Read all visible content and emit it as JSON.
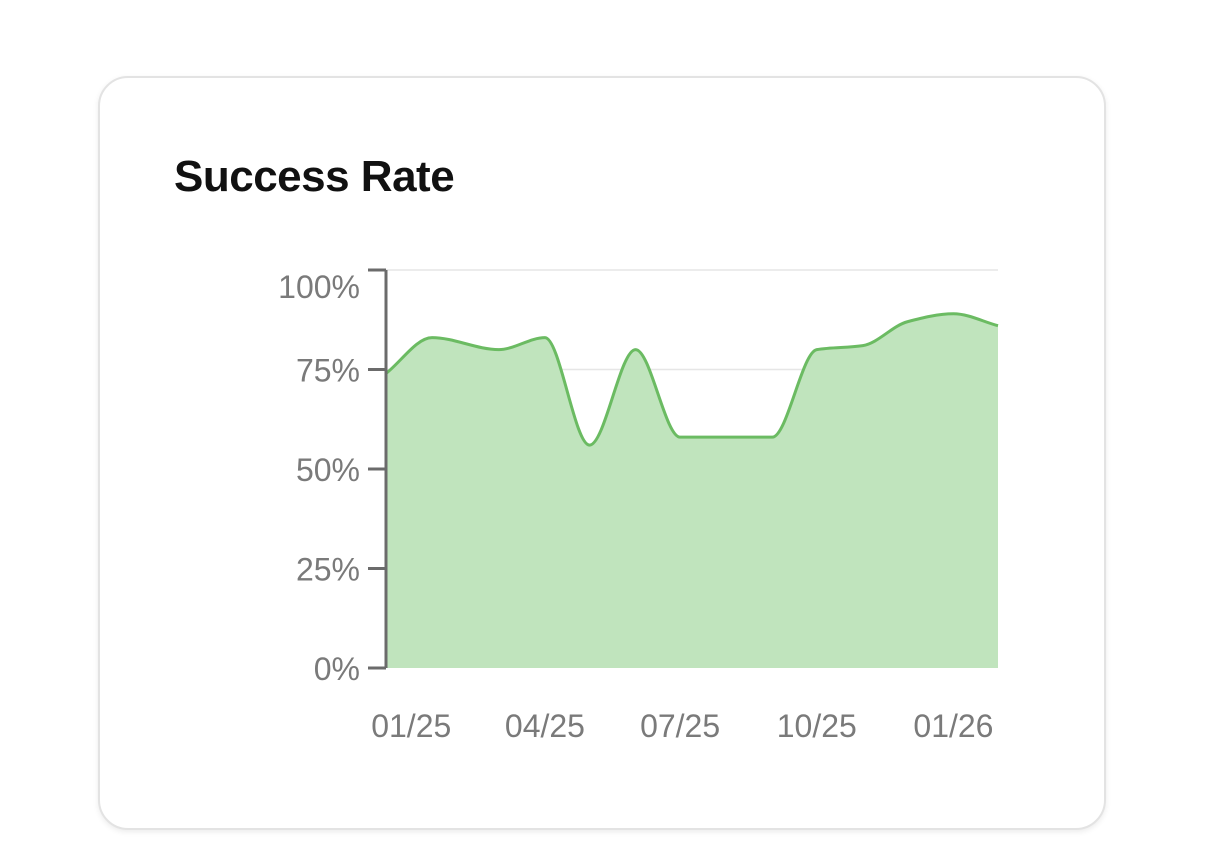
{
  "card": {
    "title": "Success Rate"
  },
  "colors": {
    "line": "#6bbb62",
    "area": "#bfe3bc",
    "axis": "#6b6b6b",
    "grid": "#e6e6e6",
    "tick_text": "#7a7a7a"
  },
  "chart_data": {
    "type": "area",
    "title": "Success Rate",
    "xlabel": "",
    "ylabel": "",
    "ylim": [
      0,
      100
    ],
    "y_ticks": [
      0,
      25,
      50,
      75,
      100
    ],
    "y_tick_labels": [
      "0%",
      "25%",
      "50%",
      "75%",
      "100%"
    ],
    "x_ticks": [
      "2025-01",
      "2025-04",
      "2025-07",
      "2025-10",
      "2026-01"
    ],
    "x_tick_labels": [
      "01/25",
      "04/25",
      "07/25",
      "10/25",
      "01/26"
    ],
    "xlim": [
      "2024-12-15",
      "2026-01-31"
    ],
    "grid": true,
    "series": [
      {
        "x": [
          "2024-12-15",
          "2025-01-15",
          "2025-03-01",
          "2025-04-01",
          "2025-05-01",
          "2025-06-01",
          "2025-07-01",
          "2025-08-01",
          "2025-09-01",
          "2025-10-01",
          "2025-11-01",
          "2025-12-01",
          "2026-01-01",
          "2026-01-31"
        ],
        "y": [
          74,
          83,
          80,
          83,
          56,
          80,
          58,
          58,
          58,
          80,
          81,
          87,
          89,
          86
        ]
      }
    ]
  }
}
